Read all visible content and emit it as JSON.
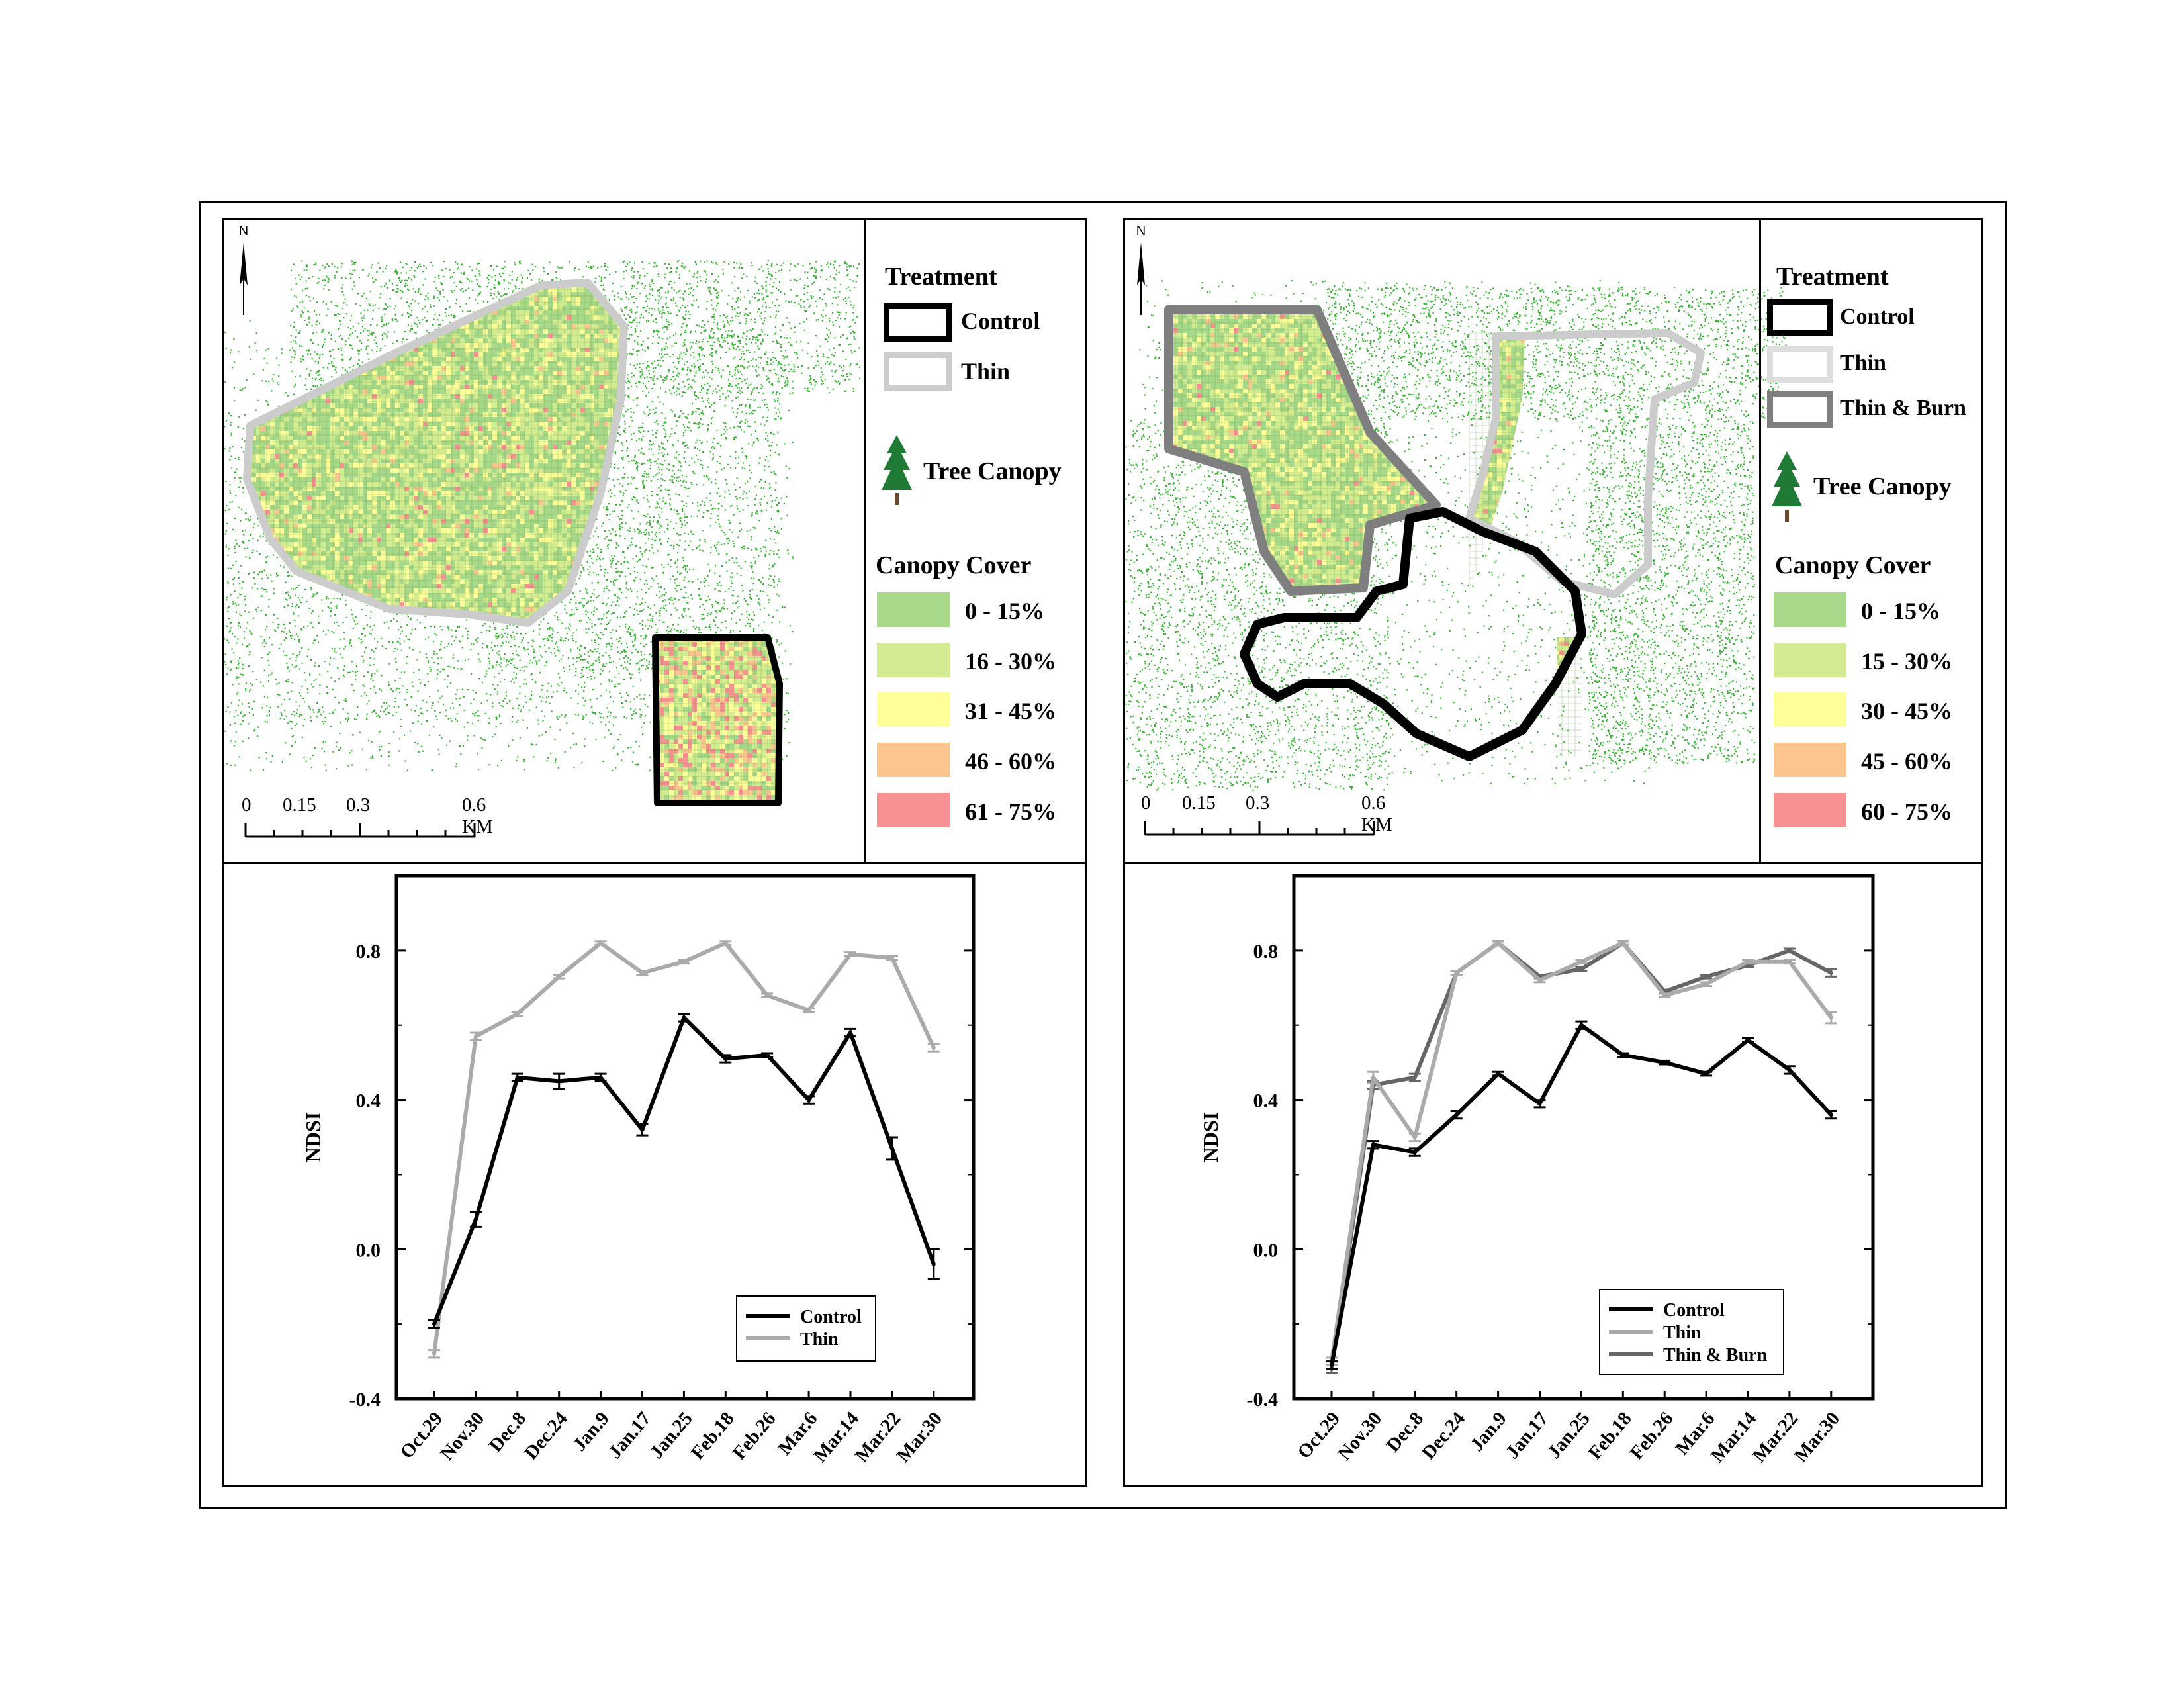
{
  "colors": {
    "control_outline": "#000000",
    "thin_outline": "#cccccc",
    "thinburn_outline": "#7f7f7f",
    "canopy_0_15": "#a8d98a",
    "canopy_16_30": "#d4ec91",
    "canopy_31_45": "#ffff99",
    "canopy_46_60": "#fbc590",
    "canopy_61_75": "#f89191",
    "tree_points": "#2fb52a"
  },
  "maps": [
    {
      "north_label": "N",
      "legend": {
        "treatment_title": "Treatment",
        "treatments": [
          "Control",
          "Thin"
        ],
        "tree_canopy_label": "Tree Canopy",
        "canopy_title": "Canopy Cover",
        "canopy_classes": [
          "0 - 15%",
          "16 - 30%",
          "31 - 45%",
          "46 - 60%",
          "61 - 75%"
        ]
      },
      "scale_labels": [
        "0",
        "0.15",
        "0.3",
        "0.6 KM"
      ]
    },
    {
      "north_label": "N",
      "legend": {
        "treatment_title": "Treatment",
        "treatments": [
          "Control",
          "Thin",
          "Thin & Burn"
        ],
        "tree_canopy_label": "Tree Canopy",
        "canopy_title": "Canopy Cover",
        "canopy_classes": [
          "0 - 15%",
          "15 - 30%",
          "30 - 45%",
          "45 - 60%",
          "60 - 75%"
        ]
      },
      "scale_labels": [
        "0",
        "0.15",
        "0.3",
        "0.6 KM"
      ]
    }
  ],
  "chart_data": [
    {
      "type": "line",
      "categories": [
        "Oct.29",
        "Nov.30",
        "Dec.8",
        "Dec.24",
        "Jan.9",
        "Jan.17",
        "Jan.25",
        "Feb.18",
        "Feb.26",
        "Mar.6",
        "Mar.14",
        "Mar.22",
        "Mar.30"
      ],
      "ylabel": "NDSI",
      "ylim": [
        -0.4,
        1.0
      ],
      "yticks": [
        "0.8",
        "0.4",
        "0.0",
        "-0.4"
      ],
      "legend_position": "bottom-right",
      "series": [
        {
          "name": "Control",
          "color": "#000000",
          "values": [
            -0.2,
            0.08,
            0.46,
            0.45,
            0.46,
            0.32,
            0.62,
            0.51,
            0.52,
            0.4,
            0.58,
            0.27,
            -0.04
          ],
          "errors": [
            0.01,
            0.02,
            0.01,
            0.02,
            0.01,
            0.015,
            0.01,
            0.01,
            0.005,
            0.01,
            0.01,
            0.03,
            0.04
          ]
        },
        {
          "name": "Thin",
          "color": "#aaaaaa",
          "values": [
            -0.28,
            0.57,
            0.63,
            0.73,
            0.82,
            0.74,
            0.77,
            0.82,
            0.68,
            0.64,
            0.79,
            0.78,
            0.54
          ],
          "errors": [
            0.01,
            0.01,
            0.005,
            0.005,
            0.005,
            0.005,
            0.005,
            0.005,
            0.005,
            0.005,
            0.005,
            0.005,
            0.01
          ]
        }
      ]
    },
    {
      "type": "line",
      "categories": [
        "Oct.29",
        "Nov.30",
        "Dec.8",
        "Dec.24",
        "Jan.9",
        "Jan.17",
        "Jan.25",
        "Feb.18",
        "Feb.26",
        "Mar.6",
        "Mar.14",
        "Mar.22",
        "Mar.30"
      ],
      "ylabel": "NDSI",
      "ylim": [
        -0.4,
        1.0
      ],
      "yticks": [
        "0.8",
        "0.4",
        "0.0",
        "-0.4"
      ],
      "legend_position": "bottom-right",
      "series": [
        {
          "name": "Control",
          "color": "#000000",
          "values": [
            -0.31,
            0.28,
            0.26,
            0.36,
            0.47,
            0.39,
            0.6,
            0.52,
            0.5,
            0.47,
            0.56,
            0.48,
            0.36
          ],
          "errors": [
            0.01,
            0.01,
            0.01,
            0.01,
            0.005,
            0.01,
            0.01,
            0.005,
            0.005,
            0.005,
            0.005,
            0.01,
            0.01
          ]
        },
        {
          "name": "Thin",
          "color": "#aaaaaa",
          "values": [
            -0.3,
            0.46,
            0.3,
            0.74,
            0.82,
            0.72,
            0.77,
            0.82,
            0.68,
            0.71,
            0.77,
            0.77,
            0.62
          ],
          "errors": [
            0.01,
            0.015,
            0.01,
            0.005,
            0.005,
            0.005,
            0.005,
            0.005,
            0.005,
            0.005,
            0.005,
            0.005,
            0.015
          ]
        },
        {
          "name": "Thin & Burn",
          "color": "#666666",
          "values": [
            -0.32,
            0.44,
            0.46,
            0.74,
            0.82,
            0.73,
            0.75,
            0.82,
            0.69,
            0.73,
            0.76,
            0.8,
            0.74
          ],
          "errors": [
            0.01,
            0.01,
            0.01,
            0.005,
            0.005,
            0.005,
            0.005,
            0.005,
            0.005,
            0.005,
            0.005,
            0.005,
            0.01
          ]
        }
      ]
    }
  ]
}
